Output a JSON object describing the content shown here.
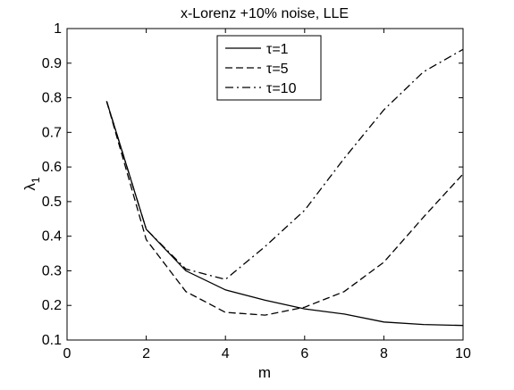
{
  "chart_data": {
    "type": "line",
    "title": "x-Lorenz +10% noise, LLE",
    "xlabel": "m",
    "ylabel": "λ1",
    "ylabel_main": "λ",
    "ylabel_sub": "1",
    "xlim": [
      0,
      10
    ],
    "ylim": [
      0.1,
      1
    ],
    "xticks": [
      "0",
      "2",
      "4",
      "6",
      "8",
      "10"
    ],
    "yticks": [
      "0.1",
      "0.2",
      "0.3",
      "0.4",
      "0.5",
      "0.6",
      "0.7",
      "0.8",
      "0.9",
      "1"
    ],
    "grid": false,
    "legend_position": "top-center",
    "series": [
      {
        "name": "τ=1",
        "style": "solid",
        "color": "#000000",
        "x": [
          1,
          2,
          3,
          4,
          5,
          6,
          7,
          8,
          9,
          10
        ],
        "y": [
          0.79,
          0.42,
          0.3,
          0.245,
          0.215,
          0.19,
          0.175,
          0.152,
          0.145,
          0.142
        ]
      },
      {
        "name": "τ=5",
        "style": "dashed",
        "color": "#000000",
        "x": [
          1,
          2,
          3,
          4,
          5,
          6,
          7,
          8,
          9,
          10
        ],
        "y": [
          0.79,
          0.39,
          0.24,
          0.18,
          0.172,
          0.195,
          0.24,
          0.325,
          0.455,
          0.58
        ]
      },
      {
        "name": "τ=10",
        "style": "dashdot",
        "color": "#000000",
        "x": [
          1,
          2,
          3,
          4,
          5,
          6,
          7,
          8,
          9,
          10
        ],
        "y": [
          0.79,
          0.42,
          0.305,
          0.275,
          0.37,
          0.475,
          0.625,
          0.765,
          0.875,
          0.94
        ]
      }
    ]
  }
}
